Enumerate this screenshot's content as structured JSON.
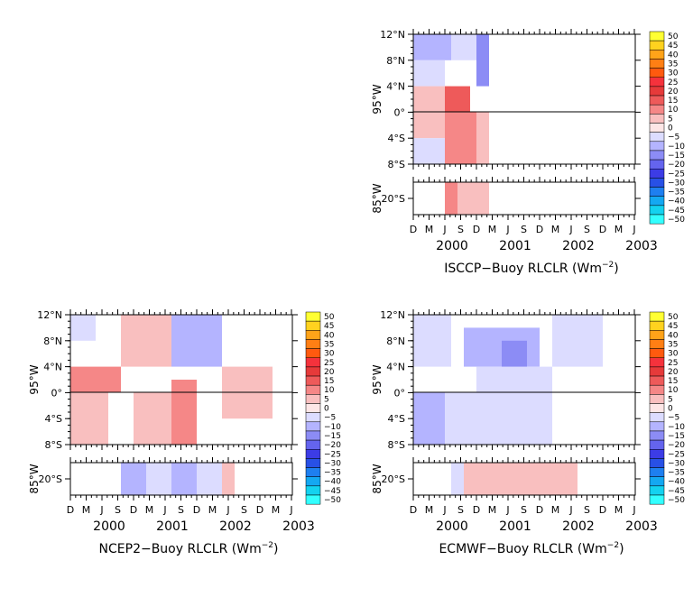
{
  "lat_labels": [
    "12°N",
    "8°N",
    "4°N",
    "0°",
    "4°S",
    "8°S"
  ],
  "lat_values": [
    12,
    8,
    4,
    0,
    -4,
    -8
  ],
  "main_ylabel": "95°W",
  "strip_ylabel": "85°W",
  "strip_lat_label": "20°S",
  "month_labels": [
    "D",
    "M",
    "J",
    "S",
    "D",
    "M",
    "J",
    "S",
    "D",
    "M",
    "J",
    "S",
    "D",
    "M",
    "J"
  ],
  "year_labels": [
    "2000",
    "2001",
    "2002",
    "2003"
  ],
  "colorbar": {
    "levels": [
      50,
      45,
      40,
      35,
      30,
      25,
      20,
      15,
      10,
      5,
      0,
      -5,
      -10,
      -15,
      -20,
      -25,
      -30,
      -35,
      -40,
      -45,
      -50
    ],
    "level_labels": [
      "50",
      "45",
      "40",
      "35",
      "30",
      "25",
      "20",
      "15",
      "10",
      "5",
      "0",
      "−5",
      "−10",
      "−15",
      "−20",
      "−25",
      "−30",
      "−35",
      "−40",
      "−45",
      "−50"
    ],
    "colors": [
      "#ffff33",
      "#ffd21f",
      "#ffa319",
      "#ff7f14",
      "#ff5a0f",
      "#f5323c",
      "#e63a3a",
      "#ee5a5a",
      "#f58787",
      "#f9bfbf",
      "#fde6e6",
      "#dcdcff",
      "#b4b4ff",
      "#8c8cf5",
      "#6464ee",
      "#3c3ce6",
      "#2850e6",
      "#1e7ff0",
      "#14a8f2",
      "#14d2f0",
      "#33ffff"
    ]
  },
  "chart_data": [
    {
      "type": "heatmap",
      "panel_id": "isccp",
      "title_prefix": "ISCCP−Buoy RLCLR (Wm",
      "title_exp": "−2",
      "title_suffix": ")",
      "x_range": [
        "1999-12",
        "2003-07"
      ],
      "y_range": [
        -8,
        12
      ],
      "main_cells": [
        {
          "t0": 0.0,
          "t1": 0.6,
          "lat0": 8,
          "lat1": 12,
          "v": -10
        },
        {
          "t0": 0.0,
          "t1": 0.5,
          "lat0": 4,
          "lat1": 8,
          "v": -5
        },
        {
          "t0": 0.0,
          "t1": 0.6,
          "lat0": 0,
          "lat1": 4,
          "v": 5
        },
        {
          "t0": 0.0,
          "t1": 0.5,
          "lat0": -4,
          "lat1": 0,
          "v": 5
        },
        {
          "t0": 0.0,
          "t1": 0.5,
          "lat0": -8,
          "lat1": -4,
          "v": -5
        },
        {
          "t0": 0.6,
          "t1": 1.0,
          "lat0": 8,
          "lat1": 12,
          "v": -5
        },
        {
          "t0": 0.5,
          "t1": 1.0,
          "lat0": -8,
          "lat1": 0,
          "v": 10
        },
        {
          "t0": 0.5,
          "t1": 0.9,
          "lat0": 0,
          "lat1": 4,
          "v": 15
        },
        {
          "t0": 1.0,
          "t1": 1.2,
          "lat0": 4,
          "lat1": 12,
          "v": -15
        },
        {
          "t0": 1.0,
          "t1": 1.2,
          "lat0": -8,
          "lat1": 0,
          "v": 5
        }
      ],
      "strip_cells": [
        {
          "t0": 0.5,
          "t1": 0.7,
          "v": 10
        },
        {
          "t0": 0.7,
          "t1": 1.2,
          "v": 5
        }
      ]
    },
    {
      "type": "heatmap",
      "panel_id": "ncep2",
      "title_prefix": "NCEP2−Buoy RLCLR (Wm",
      "title_exp": "−2",
      "title_suffix": ")",
      "x_range": [
        "1999-12",
        "2003-07"
      ],
      "y_range": [
        -8,
        12
      ],
      "main_cells": [
        {
          "t0": 0.0,
          "t1": 0.4,
          "lat0": 8,
          "lat1": 12,
          "v": -5
        },
        {
          "t0": 0.0,
          "t1": 0.8,
          "lat0": 0,
          "lat1": 4,
          "v": 10
        },
        {
          "t0": 0.0,
          "t1": 0.6,
          "lat0": -8,
          "lat1": 0,
          "v": 5
        },
        {
          "t0": 0.8,
          "t1": 1.6,
          "lat0": 4,
          "lat1": 12,
          "v": 5
        },
        {
          "t0": 1.0,
          "t1": 1.6,
          "lat0": -8,
          "lat1": 0,
          "v": 5
        },
        {
          "t0": 1.6,
          "t1": 2.4,
          "lat0": 4,
          "lat1": 12,
          "v": -10
        },
        {
          "t0": 1.6,
          "t1": 2.0,
          "lat0": -8,
          "lat1": 2,
          "v": 10
        },
        {
          "t0": 2.4,
          "t1": 3.2,
          "lat0": -4,
          "lat1": 4,
          "v": 5
        }
      ],
      "strip_cells": [
        {
          "t0": 0.8,
          "t1": 1.2,
          "v": -10
        },
        {
          "t0": 1.2,
          "t1": 1.6,
          "v": -5
        },
        {
          "t0": 1.6,
          "t1": 2.0,
          "v": -10
        },
        {
          "t0": 2.0,
          "t1": 2.4,
          "v": -5
        },
        {
          "t0": 2.4,
          "t1": 2.6,
          "v": 5
        }
      ]
    },
    {
      "type": "heatmap",
      "panel_id": "ecmwf",
      "title_prefix": "ECMWF−Buoy RLCLR (Wm",
      "title_exp": "−2",
      "title_suffix": ")",
      "x_range": [
        "1999-12",
        "2003-07"
      ],
      "y_range": [
        -8,
        12
      ],
      "main_cells": [
        {
          "t0": 0.0,
          "t1": 0.6,
          "lat0": 4,
          "lat1": 12,
          "v": -5
        },
        {
          "t0": 0.0,
          "t1": 0.5,
          "lat0": -8,
          "lat1": 0,
          "v": -10
        },
        {
          "t0": 0.5,
          "t1": 1.0,
          "lat0": -8,
          "lat1": 0,
          "v": -5
        },
        {
          "t0": 0.8,
          "t1": 2.0,
          "lat0": 4,
          "lat1": 10,
          "v": -10
        },
        {
          "t0": 1.0,
          "t1": 2.2,
          "lat0": -8,
          "lat1": 4,
          "v": -5
        },
        {
          "t0": 1.4,
          "t1": 1.8,
          "lat0": 4,
          "lat1": 8,
          "v": -15
        },
        {
          "t0": 2.2,
          "t1": 3.0,
          "lat0": 4,
          "lat1": 12,
          "v": -5
        }
      ],
      "strip_cells": [
        {
          "t0": 0.6,
          "t1": 0.8,
          "v": -5
        },
        {
          "t0": 0.8,
          "t1": 2.6,
          "v": 5
        }
      ]
    }
  ]
}
